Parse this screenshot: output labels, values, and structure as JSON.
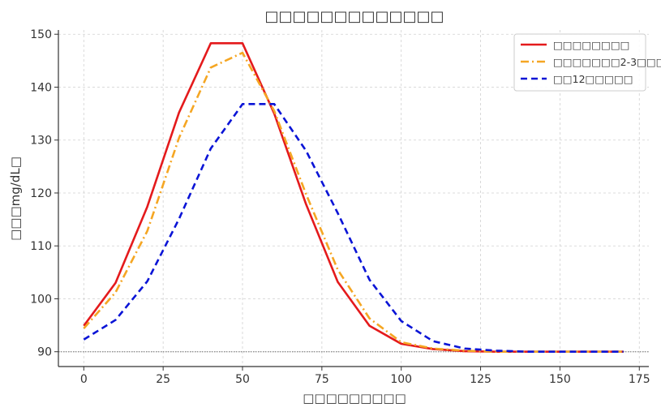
{
  "chart_data": {
    "type": "line",
    "title": "□□□□□□□□□□□□□",
    "xlabel": "□□□□□□□□□",
    "ylabel": "□□□mg/dL□",
    "xlim": [
      -8,
      178
    ],
    "ylim": [
      87.2,
      150.8
    ],
    "xticks": [
      0,
      25,
      50,
      75,
      100,
      125,
      150,
      175
    ],
    "yticks": [
      90,
      100,
      110,
      120,
      130,
      140,
      150
    ],
    "grid": true,
    "legend_position": "top-right",
    "reference_line": {
      "y": 90,
      "color": "#888888",
      "style": "dotted"
    },
    "x": [
      0,
      10,
      20,
      30,
      40,
      50,
      60,
      70,
      80,
      90,
      100,
      110,
      120,
      130,
      140,
      150,
      160,
      170
    ],
    "series": [
      {
        "name": "□□□□□□□□",
        "color": "#e41a1c",
        "style": "solid",
        "values": [
          94.9,
          103.0,
          117.4,
          135.2,
          148.3,
          148.3,
          135.0,
          117.9,
          103.2,
          94.9,
          91.5,
          90.5,
          90.1,
          90.0,
          90.0,
          90.0,
          90.0,
          90.0
        ]
      },
      {
        "name": "□□□□□□□2-3□□□",
        "color": "#f5a623",
        "style": "dashdot",
        "values": [
          94.4,
          101.2,
          112.8,
          130.4,
          143.7,
          146.5,
          135.5,
          119.8,
          105.5,
          96.3,
          91.8,
          90.6,
          90.2,
          90.0,
          90.0,
          90.0,
          90.0,
          90.0
        ]
      },
      {
        "name": "□□12□□□□□",
        "color": "#0a14d6",
        "style": "dashed",
        "values": [
          92.3,
          96.0,
          103.3,
          115.1,
          128.4,
          136.8,
          136.8,
          128.0,
          116.2,
          103.6,
          95.8,
          92.0,
          90.6,
          90.2,
          90.0,
          90.0,
          90.0,
          90.0
        ]
      }
    ]
  }
}
